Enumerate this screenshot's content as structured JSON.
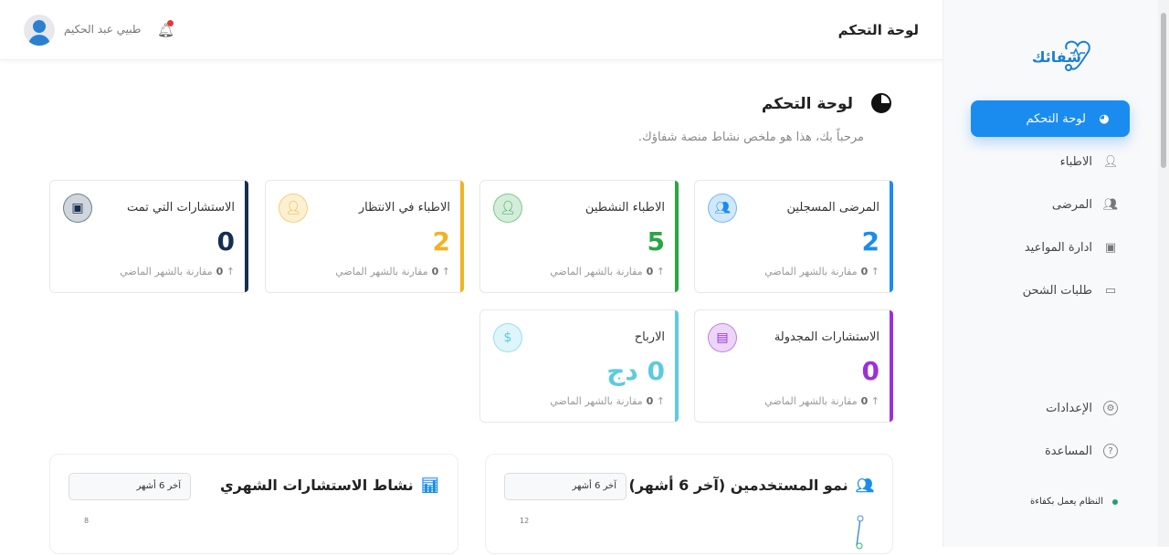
{
  "brand": {
    "name": "شفائك",
    "icon": "stethoscope-heart-icon",
    "color": "#1a7fd4"
  },
  "sidebar": {
    "items": [
      {
        "label": "لوحة التحكم",
        "icon": "pie-chart-icon",
        "active": true
      },
      {
        "label": "الاطباء",
        "icon": "doctor-icon"
      },
      {
        "label": "المرضى",
        "icon": "users-icon"
      },
      {
        "label": "ادارة المواعيد",
        "icon": "calendar-check-icon"
      },
      {
        "label": "طلبات الشحن",
        "icon": "wallet-icon"
      }
    ],
    "bottom": [
      {
        "label": "الإعدادات",
        "icon": "gear-icon"
      },
      {
        "label": "المساعدة",
        "icon": "help-icon"
      }
    ],
    "status": "النظام يعمل بكفاءة",
    "status_color": "#22a06b"
  },
  "header": {
    "title": "لوحة التحكم",
    "user": "طبيي عبد الحكيم"
  },
  "page": {
    "title": "لوحة التحكم",
    "subtitle": "مرحباً بك، هذا هو ملخص نشاط منصة شفاؤك."
  },
  "compare_label": "مقارنة بالشهر الماضي",
  "cards": [
    {
      "title": "المرضى المسجلين",
      "value": "2",
      "change": "0",
      "color": "#1a8cf0",
      "icon": "users-icon"
    },
    {
      "title": "الاطباء النشطين",
      "value": "5",
      "change": "0",
      "color": "#28a745",
      "icon": "doctor-icon"
    },
    {
      "title": "الاطباء في الانتظار",
      "value": "2",
      "change": "0",
      "color": "#f0b323",
      "icon": "doctor-icon"
    },
    {
      "title": "الاستشارات التي تمت",
      "value": "0",
      "change": "0",
      "color": "#14304f",
      "icon": "calendar-check-icon"
    },
    {
      "title": "الاستشارات المجدولة",
      "value": "0",
      "change": "0",
      "color": "#9b30d9",
      "icon": "calendar-icon"
    },
    {
      "title": "الارباح",
      "value": "0 دج",
      "change": "0",
      "color": "#5ccbe0",
      "icon": "dollar-icon"
    }
  ],
  "charts": [
    {
      "title": "نمو المستخدمين (آخر 6 أشهر)",
      "icon": "users-icon",
      "select": "آخر 6 أشهر",
      "tick": "12"
    },
    {
      "title": "نشاط الاستشارات الشهري",
      "icon": "bar-chart-icon",
      "select": "آخر 6 أشهر",
      "tick": "8"
    }
  ],
  "chart_data": [
    {
      "type": "line",
      "title": "نمو المستخدمين (آخر 6 أشهر)",
      "y_ticks_visible": [
        12
      ]
    },
    {
      "type": "bar",
      "title": "نشاط الاستشارات الشهري",
      "y_ticks_visible": [
        8
      ]
    }
  ]
}
